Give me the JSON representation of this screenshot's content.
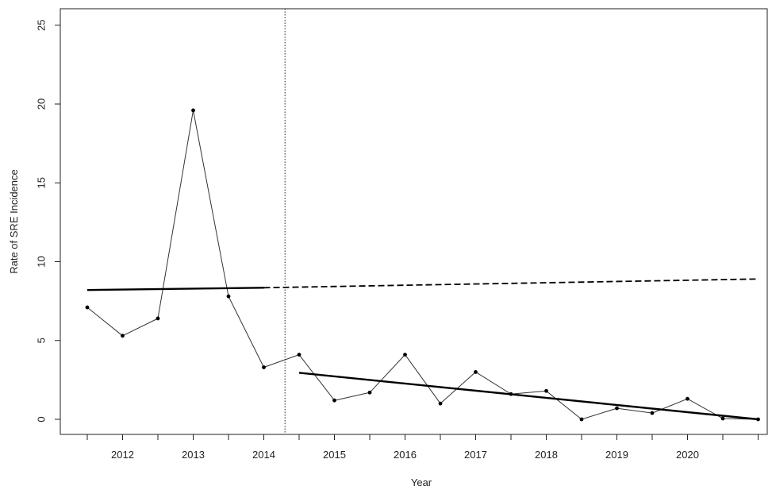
{
  "chart_data": {
    "type": "line",
    "xlabel": "Year",
    "ylabel": "Rate of SRE Incidence",
    "ylim": [
      0,
      25
    ],
    "yticks": [
      "0",
      "5",
      "10",
      "15",
      "20",
      "25"
    ],
    "year_labels": [
      "2012",
      "2013",
      "2014",
      "2015",
      "2016",
      "2017",
      "2018",
      "2019",
      "2020"
    ],
    "grid": false,
    "legend": "none",
    "interruption": 2014.3,
    "series": [
      {
        "role": "observed",
        "x": [
          2011.5,
          2012.0,
          2012.5,
          2013.0,
          2013.5,
          2014.0,
          2014.5,
          2015.0,
          2015.5,
          2016.0,
          2016.5,
          2017.0,
          2017.5,
          2018.0,
          2018.5,
          2019.0,
          2019.5,
          2020.0,
          2020.5,
          2021.0
        ],
        "y": [
          7.1,
          5.3,
          6.4,
          19.6,
          7.8,
          3.3,
          4.1,
          1.2,
          1.7,
          4.1,
          1.0,
          3.0,
          1.6,
          1.8,
          0.0,
          0.7,
          0.4,
          1.3,
          0.05,
          0.0
        ]
      },
      {
        "role": "pre-trend",
        "x": [
          2011.5,
          2014.0
        ],
        "y": [
          8.2,
          8.35
        ]
      },
      {
        "role": "counterfactual",
        "x": [
          2014.0,
          2021.0
        ],
        "y": [
          8.35,
          8.9
        ]
      },
      {
        "role": "post-trend",
        "x": [
          2014.5,
          2021.0
        ],
        "y": [
          2.95,
          0.0
        ]
      }
    ]
  }
}
